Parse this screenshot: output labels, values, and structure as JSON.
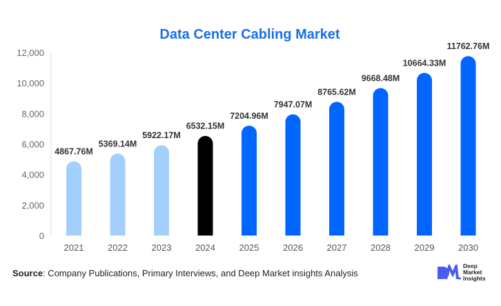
{
  "chart_data": {
    "type": "bar",
    "title": "Data Center Cabling Market",
    "categories": [
      "2021",
      "2022",
      "2023",
      "2024",
      "2025",
      "2026",
      "2027",
      "2028",
      "2029",
      "2030"
    ],
    "values": [
      4867.76,
      5369.14,
      5922.17,
      6532.15,
      7204.96,
      7947.07,
      8765.62,
      9668.48,
      10664.33,
      11762.76
    ],
    "data_labels": [
      "4867.76M",
      "5369.14M",
      "5922.17M",
      "6532.15M",
      "7204.96M",
      "7947.07M",
      "8765.62M",
      "9668.48M",
      "10664.33M",
      "11762.76M"
    ],
    "ylim": [
      0,
      12000
    ],
    "yticks": [
      0,
      2000,
      4000,
      6000,
      8000,
      10000,
      12000
    ],
    "ytick_labels": [
      "0",
      "2,000",
      "4,000",
      "6,000",
      "8,000",
      "10,000",
      "12,000"
    ],
    "grid": false,
    "bar_colors": [
      "#a3cffc",
      "#a3cffc",
      "#a3cffc",
      "#000000",
      "#0066ff",
      "#0066ff",
      "#0066ff",
      "#0066ff",
      "#0066ff",
      "#0066ff"
    ],
    "title_color": "#1a6fe8"
  },
  "source": {
    "label": "Source",
    "text": ": Company Publications, Primary Interviews, and Deep Market insights Analysis"
  },
  "logo": {
    "mark": "DM",
    "lines": [
      "Deep",
      "Market",
      "Insights"
    ]
  }
}
